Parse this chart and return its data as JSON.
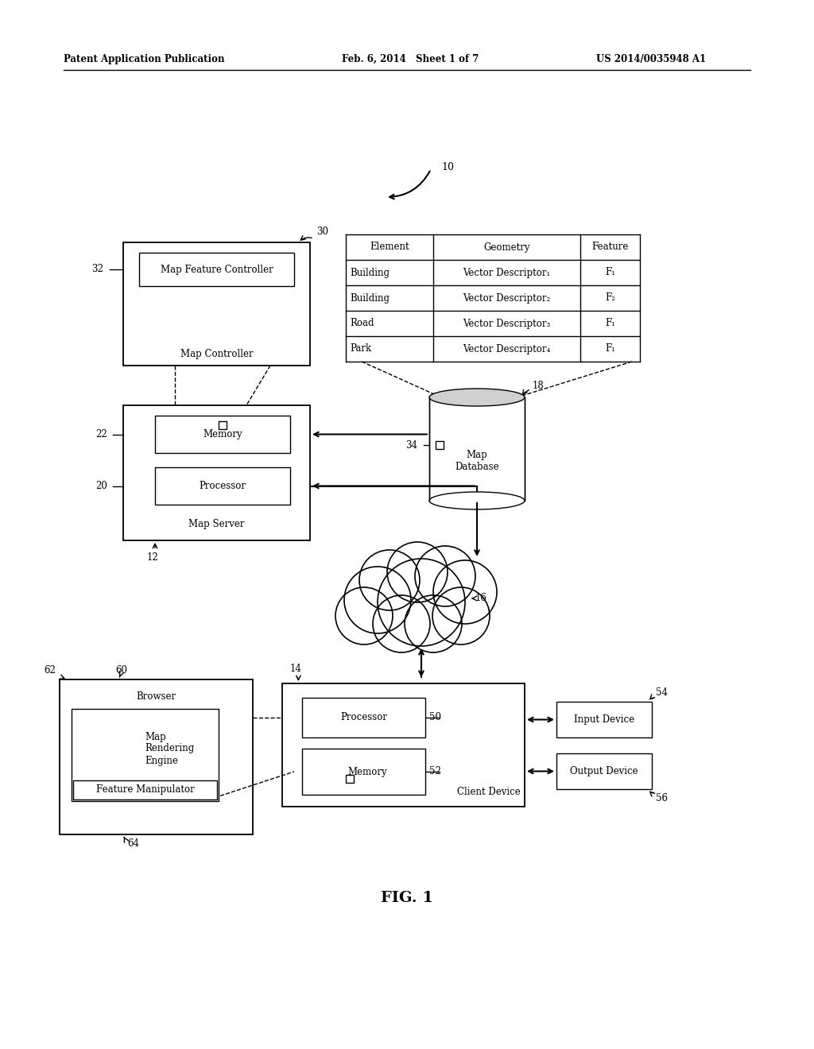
{
  "header_left": "Patent Application Publication",
  "header_mid": "Feb. 6, 2014   Sheet 1 of 7",
  "header_right": "US 2014/0035948 A1",
  "fig_label": "FIG. 1",
  "background": "#ffffff",
  "table_headers": [
    "Element",
    "Geometry",
    "Feature"
  ],
  "table_rows": [
    [
      "Building",
      "Vector Descriptor₁",
      "F₁"
    ],
    [
      "Building",
      "Vector Descriptor₂",
      "F₂"
    ],
    [
      "Road",
      "Vector Descriptor₃",
      "F₁"
    ],
    [
      "Park",
      "Vector Descriptor₄",
      "F₁"
    ]
  ],
  "labels": {
    "map_controller_label": "Map Controller",
    "map_feature_controller": "Map Feature Controller",
    "map_server": "Map Server",
    "memory": "Memory",
    "processor": "Processor",
    "map_database": "Map\nDatabase",
    "client_device": "Client Device",
    "browser": "Browser",
    "map_rendering": "Map\nRendering\nEngine",
    "feature_manipulator": "Feature Manipulator",
    "processor2": "Processor",
    "memory2": "Memory",
    "input_device": "Input Device",
    "output_device": "Output Device"
  },
  "refs": {
    "r10": "10",
    "r12": "12",
    "r14": "14",
    "r16": "16",
    "r18": "18",
    "r20": "20",
    "r22": "22",
    "r30": "30",
    "r32": "32",
    "r34": "34",
    "r50": "50",
    "r52": "52",
    "r54": "54",
    "r56": "56",
    "r60": "60",
    "r62": "62",
    "r64": "64"
  }
}
